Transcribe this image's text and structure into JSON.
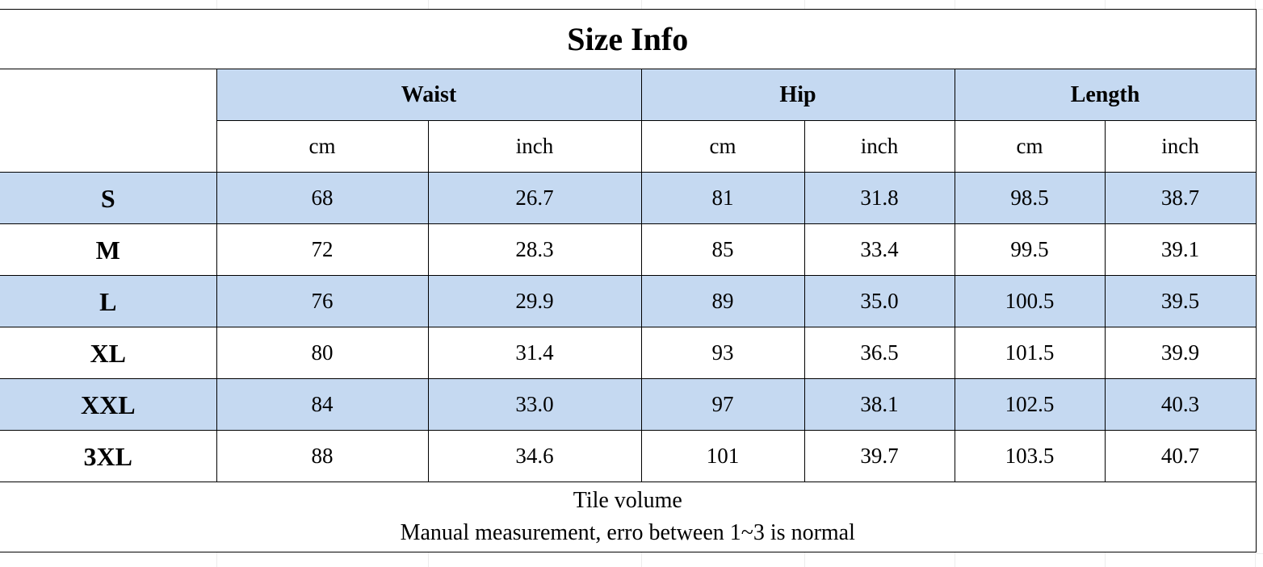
{
  "title": "Size Info",
  "groups": [
    {
      "label": "Waist",
      "units": [
        "cm",
        "inch"
      ]
    },
    {
      "label": "Hip",
      "units": [
        "cm",
        "inch"
      ]
    },
    {
      "label": "Length",
      "units": [
        "cm",
        "inch"
      ]
    }
  ],
  "rows": [
    {
      "size": "S",
      "values": [
        "68",
        "26.7",
        "81",
        "31.8",
        "98.5",
        "38.7"
      ],
      "shaded": true
    },
    {
      "size": "M",
      "values": [
        "72",
        "28.3",
        "85",
        "33.4",
        "99.5",
        "39.1"
      ],
      "shaded": false
    },
    {
      "size": "L",
      "values": [
        "76",
        "29.9",
        "89",
        "35.0",
        "100.5",
        "39.5"
      ],
      "shaded": true
    },
    {
      "size": "XL",
      "values": [
        "80",
        "31.4",
        "93",
        "36.5",
        "101.5",
        "39.9"
      ],
      "shaded": false
    },
    {
      "size": "XXL",
      "values": [
        "84",
        "33.0",
        "97",
        "38.1",
        "102.5",
        "40.3"
      ],
      "shaded": true
    },
    {
      "size": "3XL",
      "values": [
        "88",
        "34.6",
        "101",
        "39.7",
        "103.5",
        "40.7"
      ],
      "shaded": false
    }
  ],
  "note": {
    "line1": "Tile volume",
    "line2": "Manual measurement, erro between 1~3 is normal"
  },
  "colors": {
    "header_fill": "#c5d9f1",
    "border": "#000000"
  }
}
